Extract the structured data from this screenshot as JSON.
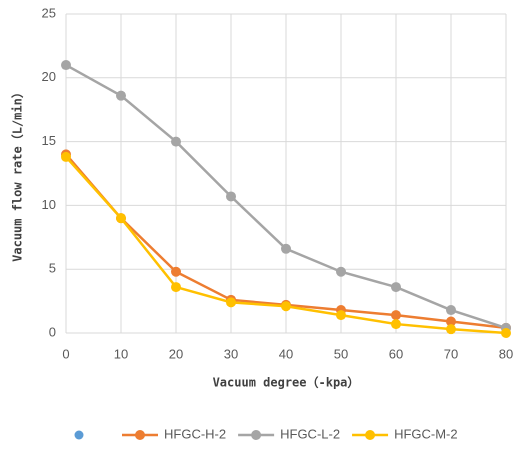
{
  "chart_data": {
    "type": "line",
    "x_label": "Vacuum degree（-kpa）",
    "y_label": "Vacuum flow rate（L/min）",
    "x": [
      0,
      10,
      20,
      30,
      40,
      50,
      60,
      70,
      80
    ],
    "xlim": [
      0,
      80
    ],
    "xticks": [
      0,
      10,
      20,
      30,
      40,
      50,
      60,
      70,
      80
    ],
    "ylim": [
      0,
      25
    ],
    "yticks": [
      0,
      5,
      10,
      15,
      20,
      25
    ],
    "grid": true,
    "legend": "bottom",
    "series": [
      {
        "name": null,
        "color": "#5b9bd5",
        "line": false,
        "values": [
          null,
          null,
          null,
          null,
          null,
          null,
          null,
          null,
          null
        ]
      },
      {
        "name": "HFGC-H-2",
        "color": "#ed7d31",
        "line": true,
        "values": [
          14,
          9,
          4.8,
          2.6,
          2.2,
          1.8,
          1.4,
          0.9,
          0.4
        ]
      },
      {
        "name": "HFGC-L-2",
        "color": "#a5a5a5",
        "line": true,
        "values": [
          21,
          18.6,
          15,
          10.7,
          6.6,
          4.8,
          3.6,
          1.8,
          0.4
        ]
      },
      {
        "name": "HFGC-M-2",
        "color": "#ffc000",
        "line": true,
        "values": [
          13.8,
          9,
          3.6,
          2.4,
          2.1,
          1.4,
          0.7,
          0.3,
          0
        ]
      }
    ]
  }
}
